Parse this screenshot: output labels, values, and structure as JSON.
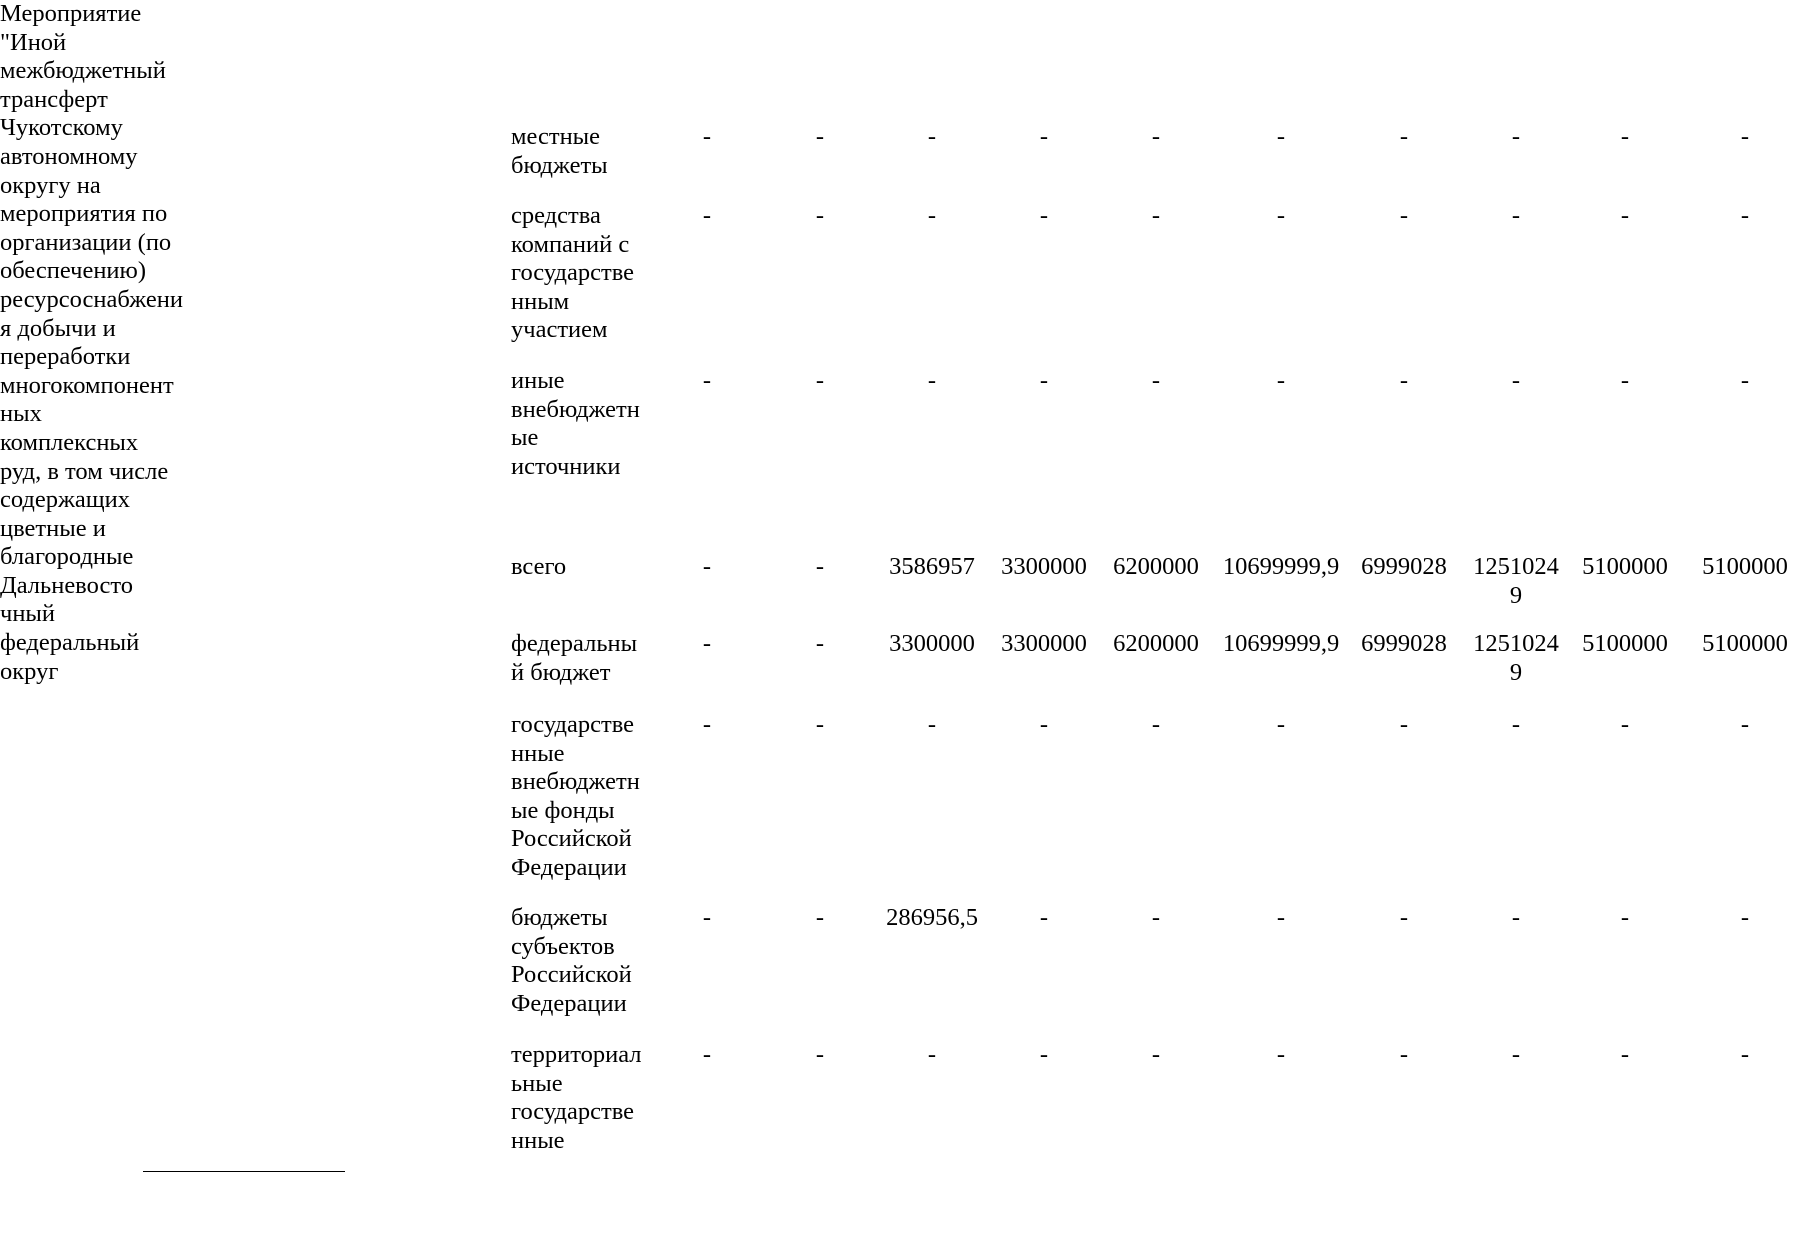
{
  "document": {
    "event_name": "Мероприятие\n\"Иной\nмежбюджетный\nтрансферт\nЧукотскому\nавтономному\nокругу на\nмероприятия по\nорганизации (по\nобеспечению)\nресурсоснабжени\nя добычи и\nпереработки\nмногокомпонент\nных\nкомплексных\nруд, в том числе\nсодержащих\nцветные и\nблагородные",
    "region": "Дальневосто\nчный\nфедеральный\nокруг",
    "rows": [
      {
        "label": "местные\nбюджеты",
        "values": [
          "-",
          "-",
          "-",
          "-",
          "-",
          "-",
          "-",
          "-",
          "-",
          "-"
        ]
      },
      {
        "label": "средства\nкомпаний с\nгосударстве\nнным\nучастием",
        "values": [
          "-",
          "-",
          "-",
          "-",
          "-",
          "-",
          "-",
          "-",
          "-",
          "-"
        ]
      },
      {
        "label": "иные\nвнебюджетн\nые\nисточники",
        "values": [
          "-",
          "-",
          "-",
          "-",
          "-",
          "-",
          "-",
          "-",
          "-",
          "-"
        ]
      },
      {
        "label": "всего",
        "values": [
          "-",
          "-",
          "3586957",
          "3300000",
          "6200000",
          "10699999,9",
          "6999028",
          "1251024\n9",
          "5100000",
          "5100000"
        ]
      },
      {
        "label": "федеральны\nй бюджет",
        "values": [
          "-",
          "-",
          "3300000",
          "3300000",
          "6200000",
          "10699999,9",
          "6999028",
          "1251024\n9",
          "5100000",
          "5100000"
        ]
      },
      {
        "label": "государстве\nнные\nвнебюджетн\nые фонды\nРоссийской\nФедерации",
        "values": [
          "-",
          "-",
          "-",
          "-",
          "-",
          "-",
          "-",
          "-",
          "-",
          "-"
        ]
      },
      {
        "label": "бюджеты\nсубъектов\nРоссийской\nФедерации",
        "values": [
          "-",
          "-",
          "286956,5",
          "-",
          "-",
          "-",
          "-",
          "-",
          "-",
          "-"
        ]
      },
      {
        "label": "территориал\nьные\nгосударстве\nнные",
        "values": [
          "-",
          "-",
          "-",
          "-",
          "-",
          "-",
          "-",
          "-",
          "-",
          "-"
        ]
      }
    ]
  }
}
